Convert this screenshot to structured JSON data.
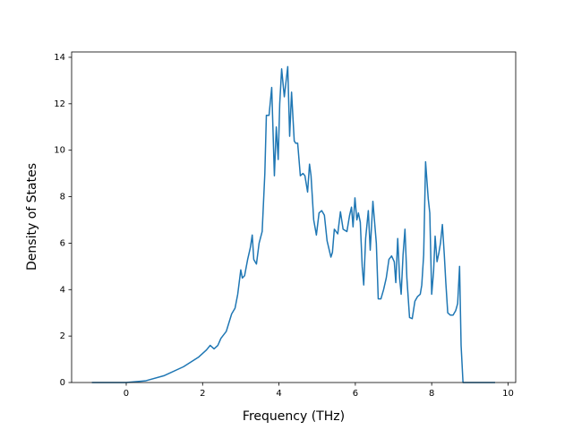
{
  "chart_data": {
    "type": "line",
    "x_label": "Frequency (THz)",
    "y_label": "Density of States",
    "xlim": [
      -1.43,
      10.2
    ],
    "ylim": [
      0,
      14.23
    ],
    "xticks": [
      0,
      2,
      4,
      6,
      8,
      10
    ],
    "yticks": [
      0,
      2,
      4,
      6,
      8,
      10,
      12,
      14
    ],
    "grid": false,
    "series": [
      {
        "color": "#1f77b4",
        "x": [
          -0.9,
          0,
          0.5,
          1,
          1.5,
          1.9,
          2.0,
          2.1,
          2.2,
          2.3,
          2.4,
          2.48,
          2.62,
          2.76,
          2.85,
          2.92,
          3.0,
          3.04,
          3.1,
          3.18,
          3.25,
          3.3,
          3.34,
          3.41,
          3.48,
          3.56,
          3.63,
          3.67,
          3.74,
          3.81,
          3.88,
          3.93,
          3.98,
          4.02,
          4.07,
          4.14,
          4.23,
          4.28,
          4.33,
          4.4,
          4.44,
          4.49,
          4.56,
          4.63,
          4.68,
          4.75,
          4.8,
          4.84,
          4.91,
          4.98,
          5.05,
          5.12,
          5.19,
          5.26,
          5.36,
          5.4,
          5.45,
          5.54,
          5.61,
          5.68,
          5.78,
          5.85,
          5.9,
          5.94,
          5.99,
          6.04,
          6.08,
          6.13,
          6.18,
          6.22,
          6.27,
          6.34,
          6.39,
          6.46,
          6.5,
          6.55,
          6.6,
          6.67,
          6.74,
          6.81,
          6.88,
          6.95,
          7.02,
          7.06,
          7.11,
          7.16,
          7.2,
          7.25,
          7.3,
          7.35,
          7.42,
          7.49,
          7.56,
          7.63,
          7.7,
          7.74,
          7.79,
          7.84,
          7.91,
          7.95,
          8.0,
          8.05,
          8.09,
          8.14,
          8.19,
          8.23,
          8.28,
          8.33,
          8.37,
          8.42,
          8.49,
          8.56,
          8.63,
          8.68,
          8.73,
          8.77,
          8.82,
          9.66
        ],
        "values": [
          0,
          0,
          0.07,
          0.3,
          0.68,
          1.1,
          1.25,
          1.4,
          1.6,
          1.45,
          1.6,
          1.9,
          2.2,
          2.95,
          3.2,
          3.8,
          4.85,
          4.5,
          4.6,
          5.3,
          5.8,
          6.35,
          5.3,
          5.1,
          6.0,
          6.5,
          9.0,
          11.5,
          11.5,
          12.7,
          8.9,
          11.0,
          9.6,
          12.0,
          13.5,
          12.3,
          13.6,
          10.6,
          12.5,
          10.4,
          10.3,
          10.3,
          8.9,
          9.0,
          8.9,
          8.2,
          9.4,
          8.9,
          7.0,
          6.35,
          7.3,
          7.4,
          7.2,
          6.1,
          5.4,
          5.6,
          6.6,
          6.4,
          7.35,
          6.6,
          6.5,
          7.2,
          7.55,
          6.7,
          7.95,
          7.0,
          7.3,
          6.9,
          5.0,
          4.2,
          6.2,
          7.4,
          5.7,
          7.8,
          7.0,
          6.0,
          3.6,
          3.6,
          4.0,
          4.5,
          5.3,
          5.45,
          5.2,
          4.3,
          6.2,
          4.5,
          3.8,
          5.5,
          6.6,
          4.5,
          2.8,
          2.75,
          3.5,
          3.7,
          3.8,
          4.2,
          5.5,
          9.5,
          7.9,
          7.3,
          3.8,
          4.8,
          6.3,
          5.2,
          5.6,
          6.0,
          6.8,
          5.5,
          4.3,
          3.0,
          2.9,
          2.9,
          3.1,
          3.4,
          5.0,
          1.6,
          0,
          0
        ]
      }
    ]
  }
}
